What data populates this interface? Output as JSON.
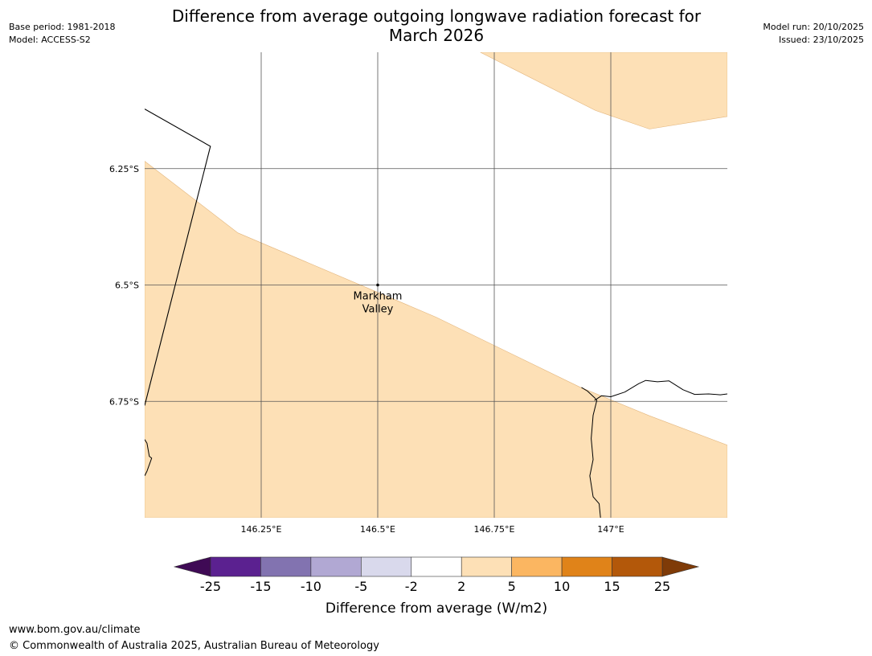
{
  "title_line1": "Difference from average outgoing longwave radiation forecast for",
  "title_line2": "March 2026",
  "meta_left": [
    "Base period: 1981-2018",
    "Model: ACCESS-S2"
  ],
  "meta_right": [
    "Model run: 20/10/2025",
    "Issued: 23/10/2025"
  ],
  "map": {
    "lon_range": [
      146.0,
      147.25
    ],
    "lat_range": [
      -6.0,
      -7.0
    ],
    "lon_ticks": [
      {
        "value": 146.25,
        "label": "146.25°E"
      },
      {
        "value": 146.5,
        "label": "146.5°E"
      },
      {
        "value": 146.75,
        "label": "146.75°E"
      },
      {
        "value": 147.0,
        "label": "147°E"
      }
    ],
    "lat_ticks": [
      {
        "value": -6.25,
        "label": "6.25°S"
      },
      {
        "value": -6.5,
        "label": "6.5°S"
      },
      {
        "value": -6.75,
        "label": "6.75°S"
      }
    ],
    "fill_color": "#fde0b6",
    "anomaly_regions": [
      {
        "name": "north-east",
        "category": "2 to 5",
        "coords": [
          [
            146.72,
            -6.0
          ],
          [
            147.25,
            -6.0
          ],
          [
            147.25,
            -6.138
          ],
          [
            147.083,
            -6.165
          ],
          [
            146.967,
            -6.125
          ]
        ]
      },
      {
        "name": "south-west",
        "category": "2 to 5",
        "coords": [
          [
            146.0,
            -6.234
          ],
          [
            146.2,
            -6.388
          ],
          [
            146.625,
            -6.569
          ],
          [
            146.933,
            -6.719
          ],
          [
            147.083,
            -6.781
          ],
          [
            147.25,
            -6.844
          ],
          [
            147.25,
            -7.0
          ],
          [
            146.0,
            -7.0
          ]
        ]
      }
    ],
    "border_line": [
      [
        146.0,
        -6.122
      ],
      [
        146.141,
        -6.202
      ],
      [
        146.0,
        -6.759
      ]
    ],
    "coastlines": [
      [
        [
          146.0,
          -6.832
        ],
        [
          146.005,
          -6.84
        ],
        [
          146.01,
          -6.868
        ],
        [
          146.015,
          -6.872
        ],
        [
          146.005,
          -6.9
        ],
        [
          146.0,
          -6.91
        ]
      ],
      [
        [
          146.937,
          -6.72
        ],
        [
          146.95,
          -6.728
        ],
        [
          146.965,
          -6.742
        ],
        [
          146.97,
          -6.748
        ],
        [
          146.962,
          -6.78
        ],
        [
          146.958,
          -6.83
        ],
        [
          146.962,
          -6.875
        ],
        [
          146.955,
          -6.91
        ],
        [
          146.962,
          -6.955
        ],
        [
          146.975,
          -6.97
        ],
        [
          146.978,
          -7.0
        ]
      ],
      [
        [
          146.965,
          -6.748
        ],
        [
          146.98,
          -6.738
        ],
        [
          147.0,
          -6.74
        ],
        [
          147.03,
          -6.73
        ],
        [
          147.06,
          -6.712
        ],
        [
          147.075,
          -6.705
        ],
        [
          147.1,
          -6.708
        ],
        [
          147.125,
          -6.706
        ],
        [
          147.155,
          -6.725
        ],
        [
          147.18,
          -6.735
        ],
        [
          147.21,
          -6.734
        ],
        [
          147.235,
          -6.736
        ],
        [
          147.25,
          -6.734
        ]
      ]
    ],
    "place": {
      "name_line1": "Markham",
      "name_line2": "Valley",
      "lon": 146.5,
      "lat": -6.5
    }
  },
  "colorbar": {
    "title": "Difference from average (W/m2)",
    "bins": [
      {
        "label": "-25",
        "color": "#3f0a55"
      },
      {
        "label": "-15",
        "color": "#5b2190"
      },
      {
        "label": "-10",
        "color": "#8273b0"
      },
      {
        "label": "-5",
        "color": "#b1a8d3"
      },
      {
        "label": "-2",
        "color": "#d9d9ec"
      },
      {
        "label": "2",
        "color": "#ffffff"
      },
      {
        "label": "5",
        "color": "#fde0b6"
      },
      {
        "label": "10",
        "color": "#fbb661"
      },
      {
        "label": "15",
        "color": "#e08319"
      },
      {
        "label": "25",
        "color": "#b3580a"
      },
      {
        "label": "",
        "color": "#7f3b08"
      }
    ]
  },
  "footer": {
    "url": "www.bom.gov.au/climate",
    "copyright": "© Commonwealth of Australia 2025, Australian Bureau of Meteorology"
  }
}
